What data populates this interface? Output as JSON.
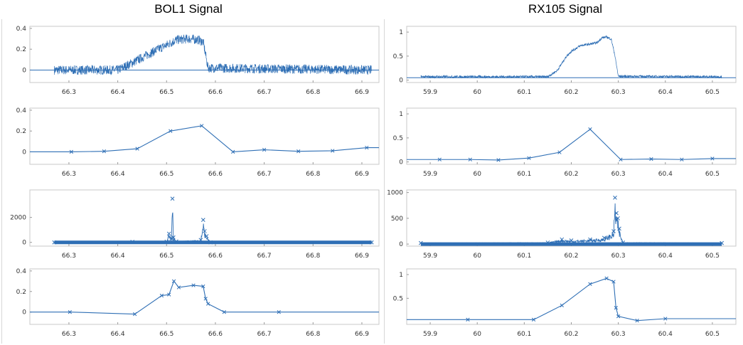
{
  "figure": {
    "left_title": "BOL1 Signal",
    "right_title": "RX105 Signal"
  },
  "chart_data": [
    {
      "id": "bol1-raw",
      "type": "line",
      "column": "left",
      "row": 0,
      "xlim": [
        66.22,
        66.935
      ],
      "ylim": [
        -0.12,
        0.42
      ],
      "xticks": [
        66.3,
        66.4,
        66.5,
        66.6,
        66.7,
        66.8,
        66.9
      ],
      "xticklabels": [
        "66.3",
        "66.4",
        "66.5",
        "66.6",
        "66.7",
        "66.8",
        "66.9"
      ],
      "yticks": [
        0,
        0.2,
        0.4
      ],
      "yticklabels": [
        "0",
        "0.2",
        "0.4"
      ],
      "noisy": true,
      "noise_amp": 0.045,
      "noise_range": [
        66.27,
        66.92
      ],
      "flat_outside": 0,
      "series": [
        {
          "color": "#2f6fb5",
          "x": [
            66.27,
            66.4,
            66.43,
            66.47,
            66.5,
            66.52,
            66.545,
            66.565,
            66.575,
            66.585,
            66.92
          ],
          "y": [
            0,
            0,
            0.07,
            0.17,
            0.24,
            0.29,
            0.3,
            0.29,
            0.27,
            0.02,
            0
          ]
        }
      ]
    },
    {
      "id": "bol1-smooth",
      "type": "line",
      "column": "left",
      "row": 1,
      "xlim": [
        66.22,
        66.935
      ],
      "ylim": [
        -0.12,
        0.42
      ],
      "xticks": [
        66.3,
        66.4,
        66.5,
        66.6,
        66.7,
        66.8,
        66.9
      ],
      "xticklabels": [
        "66.3",
        "66.4",
        "66.5",
        "66.6",
        "66.7",
        "66.8",
        "66.9"
      ],
      "yticks": [
        0,
        0.2,
        0.4
      ],
      "yticklabels": [
        "0",
        "0.2",
        "0.4"
      ],
      "markers": true,
      "series": [
        {
          "color": "#2f6fb5",
          "x": [
            66.22,
            66.305,
            66.372,
            66.44,
            66.508,
            66.572,
            66.636,
            66.7,
            66.77,
            66.84,
            66.91,
            66.935
          ],
          "y": [
            0,
            0,
            0.005,
            0.03,
            0.2,
            0.25,
            0.0,
            0.02,
            0.005,
            0.01,
            0.04,
            0.04
          ]
        }
      ]
    },
    {
      "id": "bol1-spikes",
      "type": "line",
      "column": "left",
      "row": 2,
      "xlim": [
        66.22,
        66.935
      ],
      "ylim": [
        -300,
        4200
      ],
      "xticks": [
        66.3,
        66.4,
        66.5,
        66.6,
        66.7,
        66.8,
        66.9
      ],
      "xticklabels": [
        "66.3",
        "66.4",
        "66.5",
        "66.6",
        "66.7",
        "66.8",
        "66.9"
      ],
      "yticks": [
        0,
        2000
      ],
      "yticklabels": [
        "0",
        "2000"
      ],
      "dense_markers": true,
      "dense_range": [
        66.27,
        66.92
      ],
      "series": [
        {
          "color": "#2f6fb5",
          "x": [
            66.27,
            66.43,
            66.5,
            66.505,
            66.51,
            66.512,
            66.514,
            66.52,
            66.57,
            66.575,
            66.578,
            66.582,
            66.59,
            66.92
          ],
          "y": [
            0,
            40,
            60,
            700,
            300,
            3500,
            400,
            80,
            200,
            1800,
            900,
            500,
            0,
            0
          ]
        }
      ]
    },
    {
      "id": "bol1-peaks",
      "type": "line",
      "column": "left",
      "row": 3,
      "xlim": [
        66.22,
        66.935
      ],
      "ylim": [
        -0.12,
        0.42
      ],
      "xticks": [
        66.3,
        66.4,
        66.5,
        66.6,
        66.7,
        66.8,
        66.9
      ],
      "xticklabels": [
        "66.3",
        "66.4",
        "66.5",
        "66.6",
        "66.7",
        "66.8",
        "66.9"
      ],
      "yticks": [
        0,
        0.2,
        0.4
      ],
      "yticklabels": [
        "0",
        "0.2",
        "0.4"
      ],
      "markers": true,
      "series": [
        {
          "color": "#2f6fb5",
          "x": [
            66.22,
            66.302,
            66.435,
            66.49,
            66.505,
            66.515,
            66.525,
            66.555,
            66.575,
            66.58,
            66.585,
            66.618,
            66.73,
            66.935
          ],
          "y": [
            0,
            0,
            -0.02,
            0.16,
            0.17,
            0.3,
            0.24,
            0.26,
            0.25,
            0.13,
            0.08,
            0.0,
            0.0,
            0.0
          ]
        }
      ]
    },
    {
      "id": "rx105-raw",
      "type": "line",
      "column": "right",
      "row": 0,
      "xlim": [
        59.85,
        60.55
      ],
      "ylim": [
        -0.05,
        1.12
      ],
      "xticks": [
        59.9,
        60.0,
        60.1,
        60.2,
        60.3,
        60.4,
        60.5
      ],
      "xticklabels": [
        "59.9",
        "60",
        "60.1",
        "60.2",
        "60.3",
        "60.4",
        "60.5"
      ],
      "yticks": [
        0,
        0.5,
        1
      ],
      "yticklabels": [
        "0",
        "0.5",
        "1"
      ],
      "noisy": true,
      "noise_amp": 0.025,
      "noise_range": [
        59.88,
        60.52
      ],
      "flat_outside": 0.05,
      "series": [
        {
          "color": "#2f6fb5",
          "x": [
            59.88,
            60.15,
            60.17,
            60.19,
            60.2,
            60.22,
            60.24,
            60.255,
            60.265,
            60.275,
            60.285,
            60.292,
            60.3,
            60.52
          ],
          "y": [
            0.07,
            0.07,
            0.2,
            0.5,
            0.6,
            0.72,
            0.75,
            0.78,
            0.88,
            0.9,
            0.85,
            0.55,
            0.08,
            0.07
          ]
        }
      ]
    },
    {
      "id": "rx105-smooth",
      "type": "line",
      "column": "right",
      "row": 1,
      "xlim": [
        59.85,
        60.55
      ],
      "ylim": [
        -0.05,
        1.12
      ],
      "xticks": [
        59.9,
        60.0,
        60.1,
        60.2,
        60.3,
        60.4,
        60.5
      ],
      "xticklabels": [
        "59.9",
        "60",
        "60.1",
        "60.2",
        "60.3",
        "60.4",
        "60.5"
      ],
      "yticks": [
        0,
        0.5,
        1
      ],
      "yticklabels": [
        "0",
        "0.5",
        "1"
      ],
      "markers": true,
      "series": [
        {
          "color": "#2f6fb5",
          "x": [
            59.85,
            59.92,
            59.985,
            60.045,
            60.11,
            60.175,
            60.24,
            60.305,
            60.37,
            60.435,
            60.5,
            60.55
          ],
          "y": [
            0.05,
            0.05,
            0.05,
            0.04,
            0.08,
            0.2,
            0.68,
            0.05,
            0.06,
            0.05,
            0.07,
            0.07
          ]
        }
      ]
    },
    {
      "id": "rx105-spikes",
      "type": "line",
      "column": "right",
      "row": 2,
      "xlim": [
        59.85,
        60.55
      ],
      "ylim": [
        -40,
        1050
      ],
      "xticks": [
        59.9,
        60.0,
        60.1,
        60.2,
        60.3,
        60.4,
        60.5
      ],
      "xticklabels": [
        "59.9",
        "60",
        "60.1",
        "60.2",
        "60.3",
        "60.4",
        "60.5"
      ],
      "yticks": [
        0,
        500,
        1000
      ],
      "yticklabels": [
        "0",
        "500",
        "1000"
      ],
      "dense_markers": true,
      "dense_range": [
        59.88,
        60.52
      ],
      "series": [
        {
          "color": "#2f6fb5",
          "x": [
            59.88,
            60.15,
            60.18,
            60.2,
            60.24,
            60.27,
            60.29,
            60.293,
            60.296,
            60.299,
            60.302,
            60.31,
            60.52
          ],
          "y": [
            20,
            30,
            90,
            70,
            90,
            120,
            250,
            900,
            600,
            500,
            300,
            30,
            20
          ]
        }
      ]
    },
    {
      "id": "rx105-peaks",
      "type": "line",
      "column": "right",
      "row": 3,
      "xlim": [
        59.85,
        60.55
      ],
      "ylim": [
        -0.05,
        1.12
      ],
      "xticks": [
        59.9,
        60.0,
        60.1,
        60.2,
        60.3,
        60.4,
        60.5
      ],
      "xticklabels": [
        "59.9",
        "60",
        "60.1",
        "60.2",
        "60.3",
        "60.4",
        "60.5"
      ],
      "yticks": [
        0.5,
        1
      ],
      "yticklabels": [
        "0.5",
        "1"
      ],
      "markers": true,
      "series": [
        {
          "color": "#2f6fb5",
          "x": [
            59.85,
            59.98,
            60.12,
            60.18,
            60.24,
            60.275,
            60.29,
            60.295,
            60.3,
            60.34,
            60.4,
            60.55
          ],
          "y": [
            0.05,
            0.05,
            0.05,
            0.35,
            0.8,
            0.92,
            0.85,
            0.3,
            0.12,
            0.03,
            0.07,
            0.07
          ]
        }
      ]
    }
  ]
}
